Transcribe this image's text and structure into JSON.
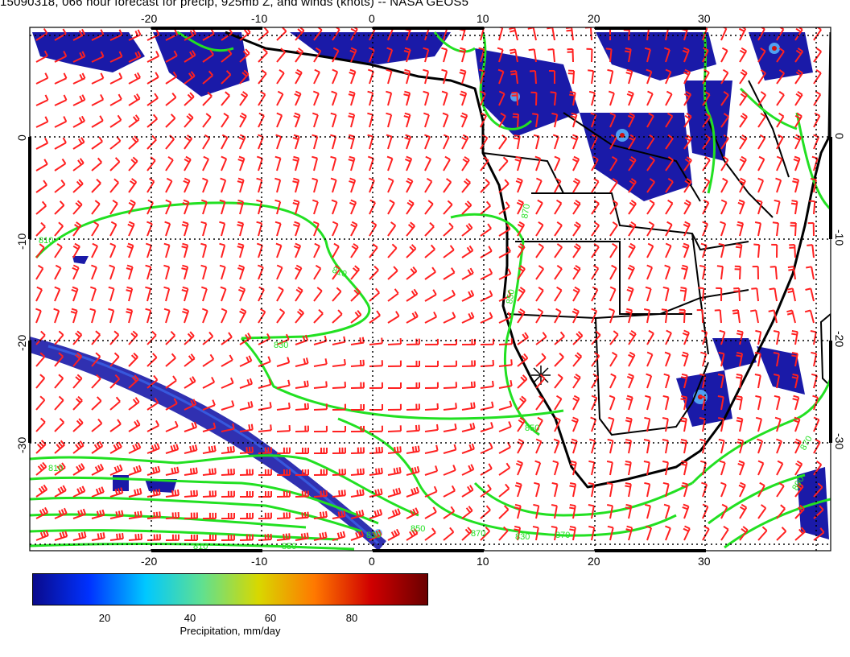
{
  "title": "15090318, 066 hour forecast for precip, 925mb Z, and winds (knots) -- NASA GEOS5",
  "map": {
    "lon_ticks": [
      "-20",
      "-10",
      "0",
      "10",
      "20",
      "30"
    ],
    "lat_ticks": [
      "0",
      "-10",
      "-20",
      "-30"
    ],
    "contour_labels": [
      "810",
      "810",
      "830",
      "850",
      "850",
      "810",
      "830",
      "850",
      "870",
      "870",
      "830",
      "810",
      "850",
      "870",
      "890",
      "870"
    ],
    "colors": {
      "wind_barbs": "#ff2020",
      "height_contours": "#22e022",
      "coastlines": "#000000",
      "grid": "#000000"
    }
  },
  "colorbar": {
    "labels": [
      "20",
      "40",
      "60",
      "80"
    ],
    "title": "Precipitation, mm/day",
    "gradient": [
      "#0a0a8c",
      "#0032ff",
      "#00c8ff",
      "#60e090",
      "#d8d800",
      "#ff7800",
      "#d00000",
      "#6a0000"
    ]
  }
}
